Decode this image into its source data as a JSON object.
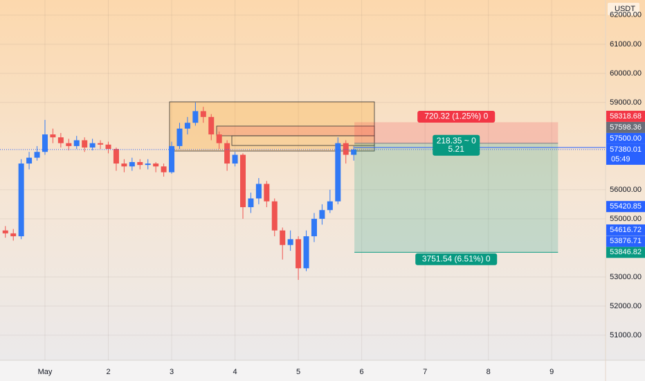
{
  "chart_data": {
    "type": "candlestick",
    "currency": "USDT",
    "countdown": "05:49",
    "x": [
      0.375,
      0.5,
      0.625,
      0.75,
      0.875,
      1,
      1.125,
      1.25,
      1.375,
      1.5,
      1.625,
      1.75,
      1.875,
      2,
      2.125,
      2.25,
      2.375,
      2.5,
      2.625,
      2.75,
      2.875,
      3,
      3.125,
      3.25,
      3.375,
      3.5,
      3.625,
      3.75,
      3.875,
      4,
      4.125,
      4.25,
      4.375,
      4.5,
      4.625,
      4.75,
      4.875,
      5,
      5.125,
      5.25,
      5.375,
      5.5,
      5.625,
      5.75,
      5.875
    ],
    "open": [
      54600,
      54500,
      54400,
      56900,
      57100,
      57300,
      57900,
      57800,
      57600,
      57500,
      57700,
      57450,
      57600,
      57550,
      57400,
      56900,
      56800,
      56950,
      56850,
      56900,
      56800,
      56600,
      57500,
      58100,
      58300,
      58700,
      58500,
      57900,
      57600,
      56900,
      57200,
      55400,
      55700,
      56200,
      55600,
      54600,
      54100,
      54300,
      53300,
      54400,
      55000,
      55300,
      55600,
      57600,
      57200
    ],
    "high": [
      54750,
      54650,
      57050,
      57300,
      57500,
      58400,
      58100,
      57950,
      57750,
      57850,
      57800,
      57750,
      57700,
      57650,
      57450,
      57050,
      57100,
      57050,
      57050,
      56950,
      56900,
      57650,
      58300,
      58500,
      59000,
      58850,
      58600,
      58000,
      57700,
      57300,
      57250,
      55900,
      56400,
      56300,
      55700,
      54700,
      54600,
      54400,
      54600,
      55200,
      55500,
      56000,
      57800,
      57700,
      57500
    ],
    "low": [
      54350,
      54250,
      54300,
      56700,
      57000,
      57200,
      57600,
      57450,
      57350,
      57400,
      57300,
      57350,
      57400,
      57250,
      56650,
      56600,
      56650,
      56700,
      56700,
      56600,
      56450,
      56550,
      57400,
      57900,
      58200,
      58300,
      57700,
      57400,
      56650,
      56800,
      55000,
      55200,
      55500,
      55400,
      54400,
      53600,
      53900,
      52900,
      53200,
      54200,
      54800,
      55200,
      55500,
      56900,
      57000
    ],
    "close": [
      54500,
      54400,
      56900,
      57100,
      57300,
      57900,
      57800,
      57600,
      57500,
      57700,
      57450,
      57600,
      57550,
      57400,
      56900,
      56800,
      56950,
      56850,
      56900,
      56800,
      56600,
      57500,
      58100,
      58300,
      58700,
      58500,
      57900,
      57600,
      56900,
      57200,
      55400,
      55700,
      56200,
      55600,
      54600,
      54100,
      54300,
      53300,
      54400,
      55000,
      55300,
      55600,
      57600,
      57200,
      57380
    ],
    "up_color": "#3179f5",
    "down_color": "#ef5350",
    "xlim": [
      0.29,
      9.85
    ],
    "xticks": [
      {
        "value": 1,
        "label": "May"
      },
      2,
      3,
      4,
      5,
      6,
      7,
      8,
      9
    ],
    "ylim": [
      50140,
      62520
    ],
    "yticks": [
      {
        "value": 51000,
        "label": "51000.00"
      },
      {
        "value": 52000,
        "label": "52000.00"
      },
      {
        "value": 53000,
        "label": "53000.00"
      },
      {
        "value": 55000,
        "label": "55000.00"
      },
      {
        "value": 56000,
        "label": "56000.00"
      },
      {
        "value": 59000,
        "label": "59000.00"
      },
      {
        "value": 60000,
        "label": "60000.00"
      },
      {
        "value": 61000,
        "label": "61000.00"
      },
      {
        "value": 62000,
        "label": "62000.00"
      }
    ],
    "grid": true,
    "current_price": 57380.01,
    "position": {
      "entry": 57598.36,
      "stop": 58318.68,
      "target": 53846.82,
      "x_start": 5.885,
      "x_end": 9.1,
      "stop_label": "720.32 (1.25%) 0",
      "status_label": "218.35 ~ 0",
      "ratio_label": "5.21",
      "target_label": "3751.54 (6.51%) 0"
    },
    "price_badges": [
      {
        "value": 58318.68,
        "color": "#f23645"
      },
      {
        "value": 57598.36,
        "color": "#6a6d78"
      },
      {
        "value": 57500,
        "label": "57500.00",
        "color": "#2962ff"
      },
      {
        "value": 57380.01,
        "color": "#2962ff"
      },
      {
        "value": 55420.85,
        "color": "#2962ff"
      },
      {
        "value": 54616.72,
        "color": "#2962ff"
      },
      {
        "value": 53876.71,
        "color": "#2962ff"
      },
      {
        "value": 53846.82,
        "color": "#089981"
      }
    ]
  }
}
